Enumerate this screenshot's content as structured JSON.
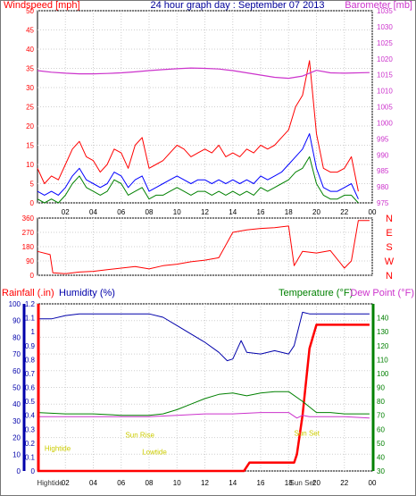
{
  "chart_data": [
    {
      "type": "line",
      "title": "24 hour graph day : September 07 2013",
      "left_axis_label": "Windspeed [mph]",
      "right_axis_label": "Barometer [mb]",
      "y_left_range": [
        0,
        50
      ],
      "y_left_ticks": [
        "0",
        "5",
        "10",
        "15",
        "20",
        "25",
        "30",
        "35",
        "40",
        "45",
        "50"
      ],
      "y_right_range": [
        975,
        1035
      ],
      "y_right_ticks": [
        "975",
        "980",
        "985",
        "990",
        "995",
        "1000",
        "1005",
        "1010",
        "1015",
        "1020",
        "1025",
        "1030",
        "1035"
      ],
      "x_ticks": [
        "02",
        "04",
        "06",
        "08",
        "10",
        "12",
        "14",
        "16",
        "18",
        "20",
        "22",
        "00"
      ],
      "grid": true,
      "colors": {
        "gust": "#ff0000",
        "average": "#0000ff",
        "low": "#008000",
        "barometer": "#cc33cc",
        "left_axis": "#ff0000",
        "right_axis": "#cc33cc",
        "title": "#000099"
      },
      "series": [
        {
          "key": "gust",
          "axis": "left",
          "x": [
            0,
            0.5,
            1,
            1.5,
            2,
            2.5,
            3,
            3.5,
            4,
            4.5,
            5,
            5.5,
            6,
            6.5,
            7,
            7.5,
            8,
            8.5,
            9,
            9.5,
            10,
            10.5,
            11,
            11.5,
            12,
            12.5,
            13,
            13.5,
            14,
            14.5,
            15,
            15.5,
            16,
            16.5,
            17,
            17.5,
            18,
            18.5,
            19,
            19.5,
            20,
            20.5,
            21,
            21.5,
            22,
            22.5,
            23
          ],
          "values": [
            9,
            5,
            7,
            6,
            10,
            14,
            16,
            12,
            11,
            8,
            10,
            14,
            13,
            9,
            15,
            17,
            9,
            10,
            11,
            13,
            15,
            14,
            12,
            13,
            14,
            13,
            15,
            12,
            13,
            12,
            14,
            13,
            15,
            14,
            15,
            17,
            19,
            25,
            28,
            37,
            18,
            9,
            8,
            8,
            9,
            12,
            3
          ]
        },
        {
          "key": "average",
          "axis": "left",
          "x": [
            0,
            0.5,
            1,
            1.5,
            2,
            2.5,
            3,
            3.5,
            4,
            4.5,
            5,
            5.5,
            6,
            6.5,
            7,
            7.5,
            8,
            8.5,
            9,
            9.5,
            10,
            10.5,
            11,
            11.5,
            12,
            12.5,
            13,
            13.5,
            14,
            14.5,
            15,
            15.5,
            16,
            16.5,
            17,
            17.5,
            18,
            18.5,
            19,
            19.5,
            20,
            20.5,
            21,
            21.5,
            22,
            22.5,
            23
          ],
          "values": [
            3,
            2,
            3,
            2,
            4,
            7,
            9,
            6,
            5,
            4,
            5,
            8,
            7,
            4,
            6,
            7,
            3,
            4,
            5,
            6,
            7,
            6,
            5,
            6,
            6,
            5,
            6,
            5,
            6,
            5,
            6,
            5,
            7,
            6,
            7,
            8,
            10,
            12,
            14,
            18,
            9,
            4,
            3,
            3,
            4,
            5,
            1
          ]
        },
        {
          "key": "low",
          "axis": "left",
          "x": [
            0,
            0.5,
            1,
            1.5,
            2,
            2.5,
            3,
            3.5,
            4,
            4.5,
            5,
            5.5,
            6,
            6.5,
            7,
            7.5,
            8,
            8.5,
            9,
            9.5,
            10,
            10.5,
            11,
            11.5,
            12,
            12.5,
            13,
            13.5,
            14,
            14.5,
            15,
            15.5,
            16,
            16.5,
            17,
            17.5,
            18,
            18.5,
            19,
            19.5,
            20,
            20.5,
            21,
            21.5,
            22,
            22.5,
            23
          ],
          "values": [
            1,
            0,
            1,
            0,
            2,
            5,
            7,
            4,
            3,
            2,
            3,
            6,
            5,
            2,
            3,
            4,
            1,
            2,
            2,
            3,
            4,
            3,
            2,
            3,
            3,
            2,
            3,
            2,
            3,
            2,
            3,
            2,
            4,
            3,
            4,
            5,
            6,
            8,
            9,
            12,
            5,
            2,
            1,
            1,
            2,
            2,
            0
          ]
        },
        {
          "key": "barometer",
          "axis": "right",
          "x": [
            0,
            1,
            2,
            3,
            4,
            5,
            6,
            7,
            8,
            9,
            10,
            11,
            12,
            13,
            14,
            15,
            16,
            17,
            18,
            19,
            20,
            21,
            22,
            23.8
          ],
          "values": [
            1016.3,
            1015.8,
            1015.5,
            1015.3,
            1015.3,
            1015.4,
            1015.6,
            1015.9,
            1016.3,
            1016.6,
            1016.9,
            1017.1,
            1017.0,
            1016.8,
            1016.3,
            1015.6,
            1014.9,
            1014.2,
            1013.9,
            1014.6,
            1016.4,
            1015.6,
            1015.5,
            1015.7
          ]
        }
      ]
    },
    {
      "type": "line",
      "y_range": [
        0,
        360
      ],
      "y_ticks": [
        "0",
        "90",
        "180",
        "270",
        "360"
      ],
      "right_labels": [
        "N",
        "W",
        "S",
        "E",
        "N"
      ],
      "x_ticks": [
        "02",
        "04",
        "06",
        "08",
        "10",
        "12",
        "14",
        "16",
        "18",
        "20",
        "22",
        "00"
      ],
      "grid": true,
      "series": [
        {
          "key": "wind_direction",
          "color": "#ff0000",
          "x": [
            0,
            0.9,
            1.1,
            2,
            3,
            4,
            5,
            6,
            7,
            8,
            9,
            10,
            11,
            12,
            13,
            14,
            15,
            16,
            17,
            18,
            18.4,
            19,
            20,
            21,
            22,
            22.5,
            23,
            23.8
          ],
          "values": [
            150,
            130,
            15,
            10,
            20,
            25,
            35,
            45,
            55,
            40,
            60,
            70,
            85,
            95,
            110,
            270,
            285,
            295,
            300,
            310,
            60,
            150,
            140,
            155,
            45,
            90,
            345,
            345
          ]
        }
      ]
    },
    {
      "type": "line",
      "labels": {
        "rainfall": "Rainfall (.in)",
        "humidity": "Humidity (%)",
        "temperature": "Temperature (°F)",
        "dewpoint": "Dew Point (°F)"
      },
      "rain_range": [
        0,
        1.2
      ],
      "rain_ticks": [
        "0",
        "0.1",
        "0.2",
        "0.3",
        "0.4",
        "0.5",
        "0.6",
        "0.7",
        "0.8",
        "0.9",
        "1",
        "1.1",
        "1.2"
      ],
      "humidity_range": [
        0,
        100
      ],
      "humidity_ticks": [
        "0",
        "10",
        "20",
        "30",
        "40",
        "50",
        "60",
        "70",
        "80",
        "90",
        "100"
      ],
      "temp_range": [
        30,
        150
      ],
      "temp_ticks": [
        "30",
        "40",
        "50",
        "60",
        "70",
        "80",
        "90",
        "100",
        "110",
        "120",
        "130",
        "140"
      ],
      "x_ticks": [
        "02",
        "04",
        "06",
        "08",
        "10",
        "12",
        "14",
        "16",
        "18",
        "20",
        "22",
        "00"
      ],
      "grid": true,
      "colors": {
        "rainfall": "#ff0000",
        "humidity": "#0000aa",
        "temperature": "#008000",
        "dewpoint": "#cc33cc",
        "left_axis": "#0000aa",
        "right_axis": "#008000",
        "rain_label": "#ff0000",
        "events": "#cccc00"
      },
      "series": [
        {
          "key": "rainfall",
          "axis": "rain",
          "x": [
            0,
            14.8,
            15.2,
            18.4,
            18.6,
            19.0,
            19.5,
            20.0,
            22.0,
            23.8
          ],
          "values": [
            0,
            0,
            0.06,
            0.06,
            0.12,
            0.4,
            0.88,
            1.05,
            1.05,
            1.05
          ]
        },
        {
          "key": "humidity",
          "axis": "humidity",
          "x": [
            0,
            1,
            2,
            3,
            4,
            5,
            6,
            7,
            8,
            9,
            10,
            11,
            12,
            13,
            13.6,
            14,
            14.6,
            15,
            16,
            17,
            18,
            18.4,
            19,
            19.5,
            20,
            21,
            22,
            23.8
          ],
          "values": [
            91,
            91,
            93,
            94,
            94,
            94,
            94,
            94,
            94,
            92,
            87,
            82,
            77,
            71,
            66,
            67,
            78,
            71,
            70,
            72,
            70,
            75,
            95,
            94,
            94,
            94,
            94,
            94
          ]
        },
        {
          "key": "temperature",
          "axis": "temp",
          "x": [
            0,
            2,
            4,
            6,
            8,
            9,
            10,
            11,
            12,
            13,
            14,
            15,
            16,
            17,
            18,
            19,
            20,
            21,
            22,
            23.8
          ],
          "values": [
            72,
            71,
            71,
            70,
            70,
            71,
            74,
            78,
            82,
            85,
            86,
            84,
            86,
            87,
            87,
            80,
            72,
            72,
            71,
            71
          ]
        },
        {
          "key": "dewpoint",
          "axis": "temp",
          "x": [
            0,
            2,
            4,
            6,
            8,
            10,
            12,
            14,
            16,
            18,
            18.6,
            19,
            19.5,
            20,
            22,
            23.8
          ],
          "values": [
            69,
            69,
            69,
            69,
            69,
            70,
            71,
            71,
            72,
            72,
            68,
            70,
            69,
            69,
            69,
            68
          ]
        }
      ],
      "events": [
        {
          "label": "Hightide",
          "x": 0.5,
          "y": 12
        },
        {
          "label": "Sun Rise",
          "x": 6.3,
          "y": 20
        },
        {
          "label": "Lowtide",
          "x": 7.5,
          "y": 10
        },
        {
          "label": "Sun Set",
          "x": 18.4,
          "y": 21
        }
      ],
      "bottom_x_labels": [
        {
          "label": "Hightide",
          "x": 0.9
        },
        {
          "label": "Sun Set",
          "x": 19.0
        }
      ]
    }
  ]
}
